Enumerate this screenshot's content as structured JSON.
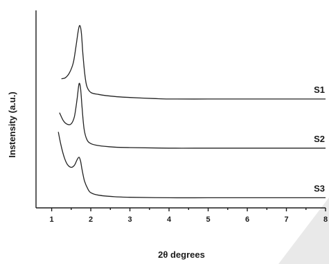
{
  "chart_data": {
    "type": "line",
    "title": "",
    "xlabel": "2θ degrees",
    "ylabel": "Instensity (a.u.)",
    "xlim": [
      0.6,
      8
    ],
    "x_ticks": [
      1,
      2,
      3,
      4,
      5,
      6,
      7,
      8
    ],
    "x_tick_labels": [
      "1",
      "2",
      "3",
      "4",
      "5",
      "6",
      "7",
      "8"
    ],
    "y_ticks_shown": false,
    "grid": false,
    "legend": "none",
    "series": [
      {
        "name": "S1",
        "offset": 2.0,
        "x": [
          1.25,
          1.35,
          1.45,
          1.55,
          1.62,
          1.68,
          1.72,
          1.76,
          1.8,
          1.85,
          1.9,
          2.0,
          2.2,
          2.6,
          3.0,
          3.6,
          4.0,
          5.0,
          6.0,
          7.0,
          8.0
        ],
        "y": [
          0.55,
          0.57,
          0.66,
          0.86,
          1.18,
          1.5,
          1.6,
          1.45,
          1.02,
          0.62,
          0.4,
          0.28,
          0.24,
          0.2,
          0.18,
          0.16,
          0.15,
          0.15,
          0.15,
          0.15,
          0.15
        ]
      },
      {
        "name": "S2",
        "offset": 1.0,
        "x": [
          1.2,
          1.3,
          1.4,
          1.5,
          1.58,
          1.65,
          1.7,
          1.74,
          1.78,
          1.83,
          1.9,
          2.0,
          2.2,
          2.6,
          3.0,
          4.0,
          5.0,
          6.0,
          7.0,
          8.0
        ],
        "y": [
          0.88,
          0.72,
          0.65,
          0.66,
          0.8,
          1.15,
          1.45,
          1.35,
          0.95,
          0.55,
          0.35,
          0.27,
          0.23,
          0.2,
          0.19,
          0.18,
          0.18,
          0.18,
          0.18,
          0.18
        ]
      },
      {
        "name": "S3",
        "offset": 0.0,
        "x": [
          1.17,
          1.2,
          1.25,
          1.32,
          1.4,
          1.5,
          1.58,
          1.65,
          1.7,
          1.74,
          1.78,
          1.84,
          1.92,
          2.0,
          2.2,
          2.6,
          3.0,
          4.0,
          5.0,
          6.0,
          7.0,
          8.0
        ],
        "y": [
          1.5,
          1.38,
          1.2,
          1.0,
          0.86,
          0.8,
          0.84,
          0.95,
          1.0,
          0.92,
          0.74,
          0.53,
          0.38,
          0.3,
          0.25,
          0.22,
          0.21,
          0.2,
          0.2,
          0.2,
          0.2,
          0.2
        ]
      }
    ]
  }
}
